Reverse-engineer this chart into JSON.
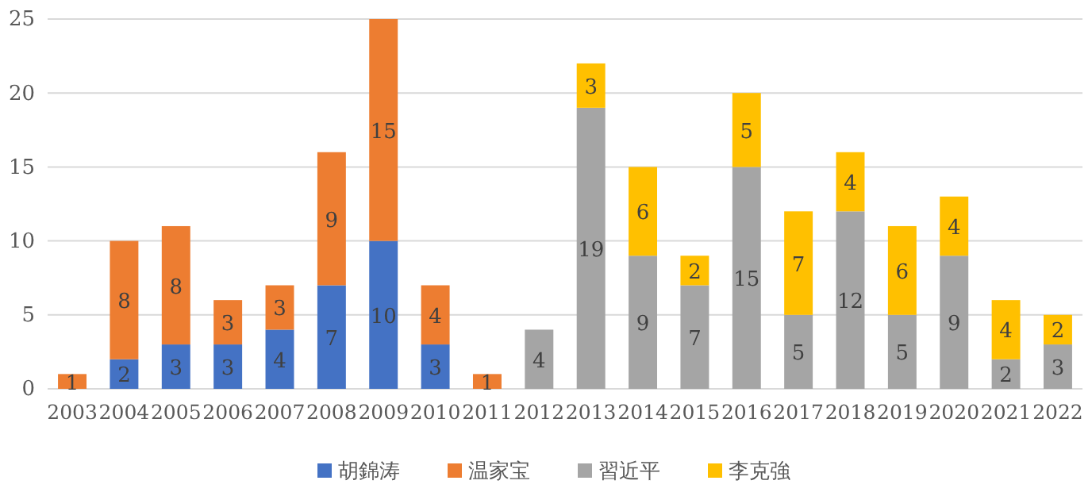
{
  "chart_data": {
    "type": "bar",
    "stacked": true,
    "categories": [
      "2003",
      "2004",
      "2005",
      "2006",
      "2007",
      "2008",
      "2009",
      "2010",
      "2011",
      "2012",
      "2013",
      "2014",
      "2015",
      "2016",
      "2017",
      "2018",
      "2019",
      "2020",
      "2021",
      "2022"
    ],
    "series": [
      {
        "name": "胡錦涛",
        "color": "#4472c4",
        "values": [
          null,
          2,
          3,
          3,
          4,
          7,
          10,
          3,
          null,
          null,
          null,
          null,
          null,
          null,
          null,
          null,
          null,
          null,
          null,
          null
        ]
      },
      {
        "name": "温家宝",
        "color": "#ed7d31",
        "values": [
          1,
          8,
          8,
          3,
          3,
          9,
          15,
          4,
          1,
          null,
          null,
          null,
          null,
          null,
          null,
          null,
          null,
          null,
          null,
          null
        ]
      },
      {
        "name": "習近平",
        "color": "#a5a5a5",
        "values": [
          null,
          null,
          null,
          null,
          null,
          null,
          null,
          null,
          null,
          4,
          19,
          9,
          7,
          15,
          5,
          12,
          5,
          9,
          2,
          3
        ]
      },
      {
        "name": "李克強",
        "color": "#ffc000",
        "values": [
          null,
          null,
          null,
          null,
          null,
          null,
          null,
          null,
          null,
          null,
          3,
          6,
          2,
          5,
          7,
          4,
          6,
          4,
          4,
          2
        ]
      }
    ],
    "ylim": [
      0,
      25
    ],
    "yticks": [
      0,
      5,
      10,
      15,
      20,
      25
    ],
    "grid": "y",
    "legend": "bottom",
    "data_labels": true
  }
}
